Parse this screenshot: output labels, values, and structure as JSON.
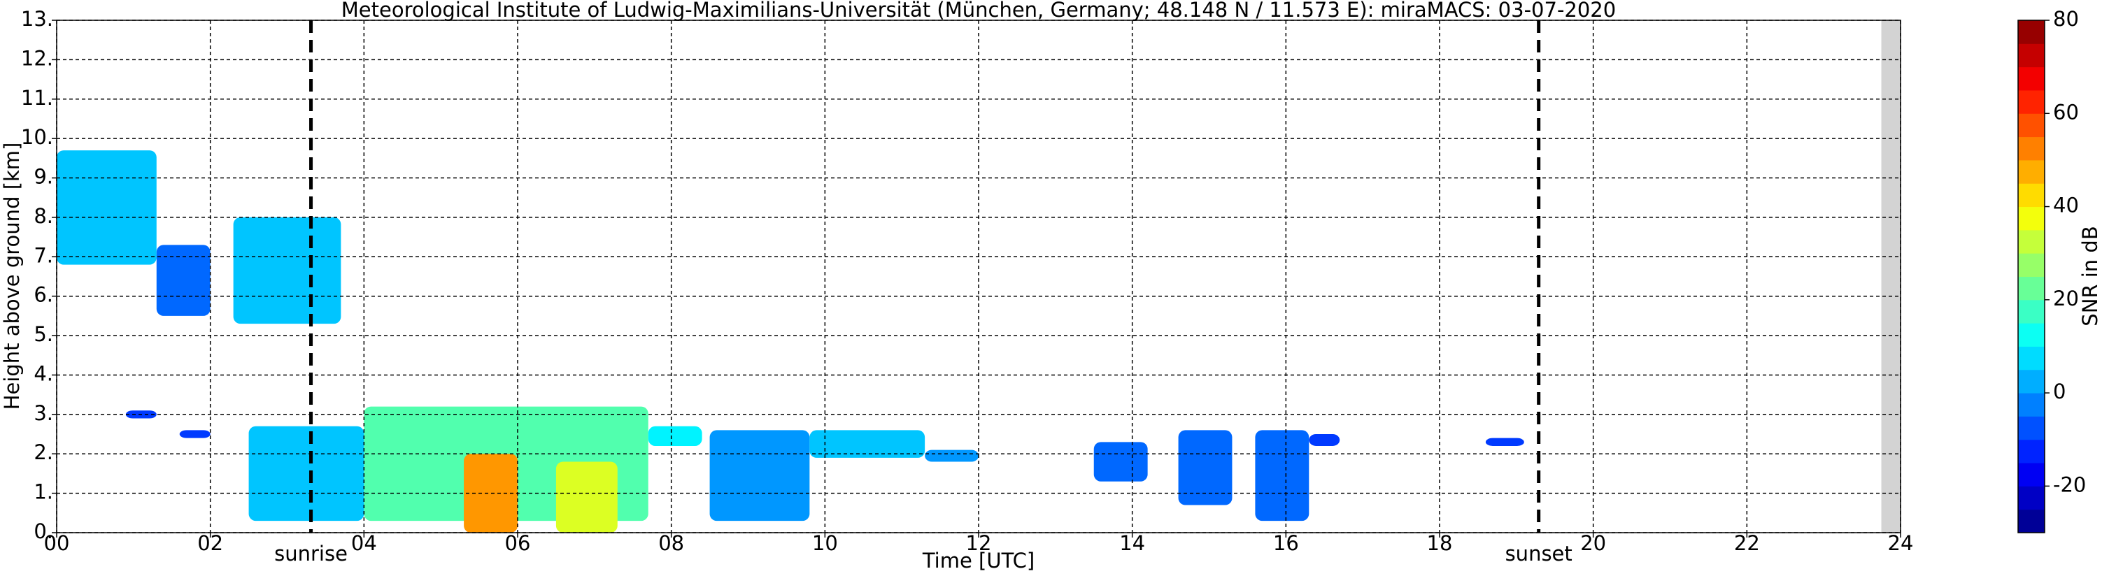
{
  "chart_data": {
    "type": "heatmap",
    "title": "Meteorological Institute of Ludwig-Maximilians-Universität (München, Germany; 48.148 N / 11.573 E):    miraMACS: 03-07-2020",
    "xlabel": "Time [UTC]",
    "ylabel": "Height above ground [km]",
    "colorbar_label": "SNR in dB",
    "xlim": [
      0,
      24
    ],
    "ylim": [
      0,
      13
    ],
    "clim": [
      -30,
      80
    ],
    "colormap": "jet",
    "grid": true,
    "xticks": [
      {
        "value": 0,
        "label": "00"
      },
      {
        "value": 2,
        "label": "02"
      },
      {
        "value": 4,
        "label": "04"
      },
      {
        "value": 6,
        "label": "06"
      },
      {
        "value": 8,
        "label": "08"
      },
      {
        "value": 10,
        "label": "10"
      },
      {
        "value": 12,
        "label": "12"
      },
      {
        "value": 14,
        "label": "14"
      },
      {
        "value": 16,
        "label": "16"
      },
      {
        "value": 18,
        "label": "18"
      },
      {
        "value": 20,
        "label": "20"
      },
      {
        "value": 22,
        "label": "22"
      },
      {
        "value": 24,
        "label": "24"
      }
    ],
    "yticks": [
      {
        "value": 0,
        "label": "0."
      },
      {
        "value": 1,
        "label": "1."
      },
      {
        "value": 2,
        "label": "2."
      },
      {
        "value": 3,
        "label": "3."
      },
      {
        "value": 4,
        "label": "4."
      },
      {
        "value": 5,
        "label": "5."
      },
      {
        "value": 6,
        "label": "6."
      },
      {
        "value": 7,
        "label": "7."
      },
      {
        "value": 8,
        "label": "8."
      },
      {
        "value": 9,
        "label": "9."
      },
      {
        "value": 10,
        "label": "10."
      },
      {
        "value": 11,
        "label": "11."
      },
      {
        "value": 12,
        "label": "12."
      },
      {
        "value": 13,
        "label": "13."
      }
    ],
    "cticks": [
      -20,
      0,
      20,
      40,
      60,
      80
    ],
    "annotations": [
      {
        "label": "sunrise",
        "x": 3.31
      },
      {
        "label": "sunset",
        "x": 19.29
      }
    ],
    "no_data_xlim": [
      23.75,
      24
    ],
    "echoes": [
      {
        "t0": 0.0,
        "t1": 1.3,
        "h0": 6.8,
        "h1": 9.7,
        "snr": 5
      },
      {
        "t0": 1.3,
        "t1": 2.0,
        "h0": 5.5,
        "h1": 7.3,
        "snr": -5
      },
      {
        "t0": 2.3,
        "t1": 3.7,
        "h0": 5.3,
        "h1": 8.0,
        "snr": 5
      },
      {
        "t0": 2.5,
        "t1": 4.0,
        "h0": 0.3,
        "h1": 2.7,
        "snr": 5
      },
      {
        "t0": 4.0,
        "t1": 7.7,
        "h0": 0.3,
        "h1": 3.2,
        "snr": 20
      },
      {
        "t0": 5.3,
        "t1": 6.0,
        "h0": 0.0,
        "h1": 2.0,
        "snr": 50
      },
      {
        "t0": 6.5,
        "t1": 7.3,
        "h0": 0.0,
        "h1": 1.8,
        "snr": 35
      },
      {
        "t0": 7.7,
        "t1": 8.4,
        "h0": 2.2,
        "h1": 2.7,
        "snr": 10
      },
      {
        "t0": 8.5,
        "t1": 9.8,
        "h0": 0.3,
        "h1": 2.6,
        "snr": 0
      },
      {
        "t0": 9.8,
        "t1": 11.3,
        "h0": 1.9,
        "h1": 2.6,
        "snr": 5
      },
      {
        "t0": 11.3,
        "t1": 12.0,
        "h0": 1.8,
        "h1": 2.1,
        "snr": 0
      },
      {
        "t0": 13.5,
        "t1": 14.2,
        "h0": 1.3,
        "h1": 2.3,
        "snr": -5
      },
      {
        "t0": 14.6,
        "t1": 15.3,
        "h0": 0.7,
        "h1": 2.6,
        "snr": -5
      },
      {
        "t0": 15.6,
        "t1": 16.3,
        "h0": 0.3,
        "h1": 2.6,
        "snr": -5
      },
      {
        "t0": 16.3,
        "t1": 16.7,
        "h0": 2.2,
        "h1": 2.5,
        "snr": -10
      },
      {
        "t0": 18.6,
        "t1": 19.1,
        "h0": 2.2,
        "h1": 2.4,
        "snr": -10
      },
      {
        "t0": 0.9,
        "t1": 1.3,
        "h0": 2.9,
        "h1": 3.1,
        "snr": -10
      },
      {
        "t0": 1.6,
        "t1": 2.0,
        "h0": 2.4,
        "h1": 2.6,
        "snr": -10
      }
    ]
  }
}
